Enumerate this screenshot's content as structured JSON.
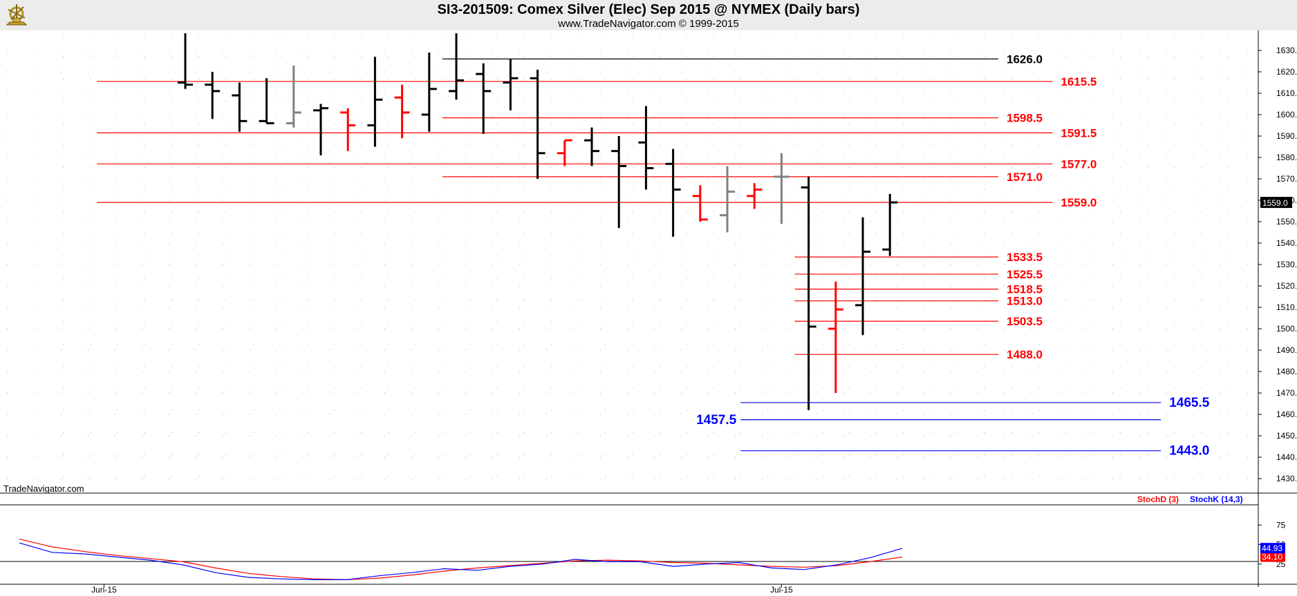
{
  "header": {
    "title": "SI3-201509:  Comex Silver (Elec) Sep 2015 @ NYMEX  (Daily bars)",
    "subtitle": "www.TradeNavigator.com © 1999-2015"
  },
  "watermark": "TradeNavigator.com",
  "colors": {
    "up_bar": "#000000",
    "down_bar": "#ff0000",
    "neutral_bar": "#808080",
    "resistance_line": "#ff0000",
    "support_line": "#0000ff",
    "stoch_d": "#ff0000",
    "stoch_k": "#0000ff"
  },
  "chart_data": [
    {
      "type": "ohlc",
      "title": "SI3-201509:  Comex Silver (Elec) Sep 2015 @ NYMEX  (Daily bars)",
      "ylim": [
        1422,
        1638
      ],
      "y_ticks": [
        "1630.0",
        "1620.0",
        "1610.0",
        "1600.0",
        "1590.0",
        "1580.0",
        "1570.0",
        "1560.0",
        "1550.0",
        "1540.0",
        "1530.0",
        "1520.0",
        "1510.0",
        "1500.0",
        "1490.0",
        "1480.0",
        "1470.0",
        "1460.0",
        "1450.0",
        "1440.0",
        "1430.0"
      ],
      "x_labels": [
        {
          "text": "Jun-15",
          "index": -3
        },
        {
          "text": "Jul-15",
          "index": 22
        }
      ],
      "last_price_label": "1559.0",
      "bars": [
        {
          "o": 1615,
          "h": 1638,
          "l": 1612,
          "c": 1614,
          "color": "black"
        },
        {
          "o": 1614,
          "h": 1620,
          "l": 1598,
          "c": 1611,
          "color": "black"
        },
        {
          "o": 1609,
          "h": 1615,
          "l": 1592,
          "c": 1597,
          "color": "black"
        },
        {
          "o": 1597,
          "h": 1617,
          "l": 1596,
          "c": 1596,
          "color": "black"
        },
        {
          "o": 1596,
          "h": 1623,
          "l": 1594,
          "c": 1601,
          "color": "gray"
        },
        {
          "o": 1602,
          "h": 1605,
          "l": 1581,
          "c": 1603,
          "color": "black"
        },
        {
          "o": 1601,
          "h": 1603,
          "l": 1583,
          "c": 1595,
          "color": "red"
        },
        {
          "o": 1595,
          "h": 1627,
          "l": 1585,
          "c": 1607,
          "color": "black"
        },
        {
          "o": 1608,
          "h": 1614,
          "l": 1589,
          "c": 1601,
          "color": "red"
        },
        {
          "o": 1600,
          "h": 1629,
          "l": 1592,
          "c": 1612,
          "color": "black"
        },
        {
          "o": 1611,
          "h": 1638,
          "l": 1607,
          "c": 1616,
          "color": "black"
        },
        {
          "o": 1619,
          "h": 1624,
          "l": 1591,
          "c": 1611,
          "color": "black"
        },
        {
          "o": 1615,
          "h": 1626,
          "l": 1602,
          "c": 1617,
          "color": "black"
        },
        {
          "o": 1617,
          "h": 1621,
          "l": 1570,
          "c": 1582,
          "color": "black"
        },
        {
          "o": 1582,
          "h": 1588,
          "l": 1576,
          "c": 1588,
          "color": "red"
        },
        {
          "o": 1588,
          "h": 1594,
          "l": 1576,
          "c": 1583,
          "color": "black"
        },
        {
          "o": 1583,
          "h": 1590,
          "l": 1547,
          "c": 1576,
          "color": "black"
        },
        {
          "o": 1587,
          "h": 1604,
          "l": 1565,
          "c": 1575,
          "color": "black"
        },
        {
          "o": 1577,
          "h": 1584,
          "l": 1543,
          "c": 1565,
          "color": "black"
        },
        {
          "o": 1562,
          "h": 1567,
          "l": 1550,
          "c": 1551,
          "color": "red"
        },
        {
          "o": 1553,
          "h": 1576,
          "l": 1545,
          "c": 1564,
          "color": "gray"
        },
        {
          "o": 1562,
          "h": 1568,
          "l": 1556,
          "c": 1565,
          "color": "red"
        },
        {
          "o": 1571,
          "h": 1582,
          "l": 1549,
          "c": 1571,
          "color": "gray"
        },
        {
          "o": 1566,
          "h": 1571,
          "l": 1462,
          "c": 1501,
          "color": "black"
        },
        {
          "o": 1500,
          "h": 1522,
          "l": 1470,
          "c": 1509,
          "color": "red"
        },
        {
          "o": 1511,
          "h": 1552,
          "l": 1497,
          "c": 1536,
          "color": "black"
        },
        {
          "o": 1537,
          "h": 1563,
          "l": 1534,
          "c": 1559,
          "color": "black"
        }
      ],
      "levels": [
        {
          "value": 1626.0,
          "label": "1626.0",
          "color": "black",
          "from_index": 10,
          "to_index": 30
        },
        {
          "value": 1615.5,
          "label": "1615.5",
          "color": "red",
          "from_index": -3,
          "to_index": 32
        },
        {
          "value": 1598.5,
          "label": "1598.5",
          "color": "red",
          "from_index": 10,
          "to_index": 30
        },
        {
          "value": 1591.5,
          "label": "1591.5",
          "color": "red",
          "from_index": -3,
          "to_index": 32
        },
        {
          "value": 1577.0,
          "label": "1577.0",
          "color": "red",
          "from_index": -3,
          "to_index": 32
        },
        {
          "value": 1571.0,
          "label": "1571.0",
          "color": "red",
          "from_index": 10,
          "to_index": 30
        },
        {
          "value": 1559.0,
          "label": "1559.0",
          "color": "red",
          "from_index": -3,
          "to_index": 32
        },
        {
          "value": 1533.5,
          "label": "1533.5",
          "color": "red",
          "from_index": 23,
          "to_index": 30
        },
        {
          "value": 1525.5,
          "label": "1525.5",
          "color": "red",
          "from_index": 23,
          "to_index": 30
        },
        {
          "value": 1518.5,
          "label": "1518.5",
          "color": "red",
          "from_index": 23,
          "to_index": 30
        },
        {
          "value": 1513.0,
          "label": "1513.0",
          "color": "red",
          "from_index": 23,
          "to_index": 30
        },
        {
          "value": 1503.5,
          "label": "1503.5",
          "color": "red",
          "from_index": 23,
          "to_index": 30
        },
        {
          "value": 1488.0,
          "label": "1488.0",
          "color": "red",
          "from_index": 23,
          "to_index": 30
        },
        {
          "value": 1465.5,
          "label": "1465.5",
          "color": "blue",
          "from_index": 21,
          "to_index": 36
        },
        {
          "value": 1457.5,
          "label": "1457.5",
          "color": "blue",
          "from_index": 21,
          "to_index": 36,
          "label_side": "left"
        },
        {
          "value": 1443.0,
          "label": "1443.0",
          "color": "blue",
          "from_index": 21,
          "to_index": 36
        }
      ]
    },
    {
      "type": "line",
      "ylim": [
        0,
        100
      ],
      "y_ticks": [
        "75",
        "50",
        "25"
      ],
      "legend": [
        "StochD (3)",
        "StochK (14,3)"
      ],
      "series": [
        {
          "name": "StochD (3)",
          "color": "red",
          "last_label": "34.10",
          "values": [
            57,
            47,
            41,
            36,
            32,
            28,
            20,
            13,
            9,
            6,
            5,
            7,
            11,
            16,
            20,
            23,
            26,
            29,
            30,
            29,
            27,
            26,
            24,
            22,
            21,
            23,
            28,
            34
          ]
        },
        {
          "name": "StochK (14,3)",
          "color": "blue",
          "last_label": "44.93",
          "values": [
            52,
            40,
            38,
            34,
            30,
            24,
            14,
            8,
            6,
            5,
            5,
            10,
            14,
            19,
            17,
            22,
            25,
            31,
            28,
            28,
            22,
            25,
            27,
            20,
            18,
            24,
            33,
            45
          ]
        }
      ]
    }
  ]
}
